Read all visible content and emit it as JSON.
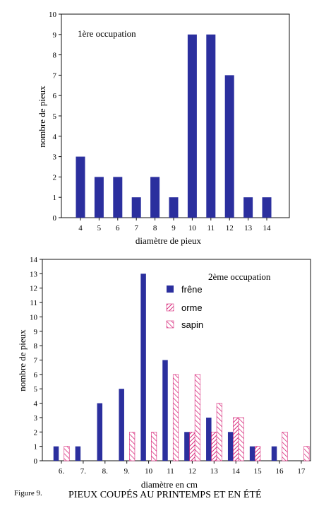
{
  "colors": {
    "frene": "#2b2f9e",
    "hatch": "#d8287a",
    "axis": "#111111"
  },
  "figure": {
    "label": "Figure 9.",
    "caption": "PIEUX COUPÉS AU PRINTEMPS ET EN ÉTÉ"
  },
  "chart_data": [
    {
      "type": "bar",
      "annotation": "1ère occupation",
      "xlabel": "diamètre de pieux",
      "ylabel": "nombre de pieux",
      "ylim": [
        0,
        10
      ],
      "yticks": [
        "0",
        "1",
        "2",
        "3",
        "4",
        "5",
        "6",
        "7",
        "8",
        "9",
        "10"
      ],
      "categories": [
        "4",
        "5",
        "6",
        "7",
        "8",
        "9",
        "10",
        "11",
        "12",
        "13",
        "14"
      ],
      "series": [
        {
          "values": [
            3,
            2,
            2,
            1,
            2,
            1,
            9,
            9,
            7,
            1,
            1
          ]
        }
      ],
      "grid": false
    },
    {
      "type": "bar",
      "annotation": "2ème occupation",
      "xlabel": "diamètre en cm",
      "ylabel": "nombre de pieux",
      "ylim": [
        0,
        14
      ],
      "yticks": [
        "0",
        "1",
        "2",
        "3",
        "4",
        "5",
        "6",
        "7",
        "8",
        "9",
        "10",
        "11",
        "12",
        "13",
        "14"
      ],
      "categories": [
        "6.",
        "7.",
        "8.",
        "9.",
        "10",
        "11",
        "12",
        "13",
        "14",
        "15",
        "16",
        "17"
      ],
      "series": [
        {
          "name": "frêne",
          "pattern": "solid",
          "values": [
            1,
            1,
            4,
            5,
            13,
            7,
            2,
            3,
            2,
            1,
            1,
            0
          ]
        },
        {
          "name": "orme",
          "pattern": "hatch-dense",
          "values": [
            0,
            0,
            0,
            0,
            0,
            0,
            2,
            2,
            3,
            1,
            0,
            0
          ]
        },
        {
          "name": "sapin",
          "pattern": "hatch-sparse",
          "values": [
            1,
            0,
            0,
            2,
            2,
            6,
            6,
            4,
            3,
            0,
            2,
            1
          ]
        }
      ],
      "legend_placement": "top-right",
      "grid": false
    }
  ]
}
